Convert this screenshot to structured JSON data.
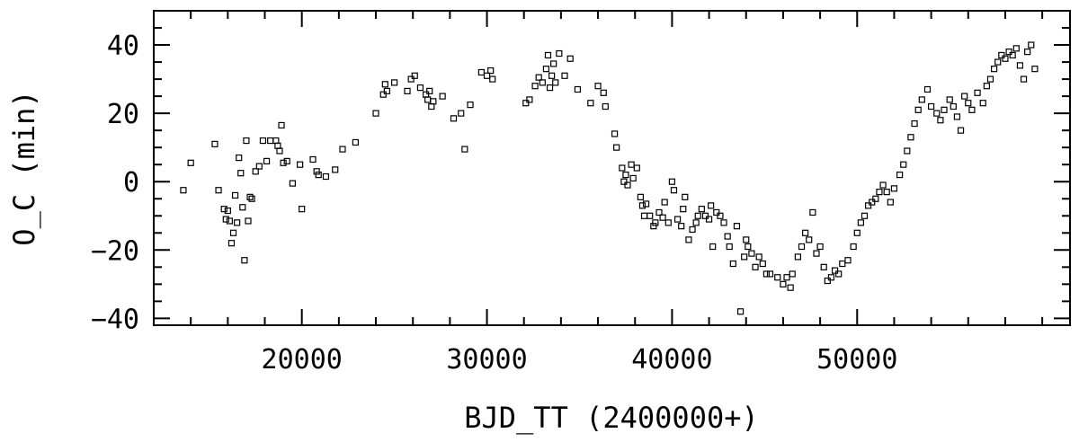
{
  "chart_data": {
    "type": "scatter",
    "xlabel": "BJD_TT (2400000+)",
    "ylabel": "O_C (min)",
    "xlim": [
      12000,
      61500
    ],
    "ylim": [
      -42,
      50
    ],
    "x_ticks": [
      20000,
      30000,
      40000,
      50000
    ],
    "x_tick_labels": [
      "20000",
      "30000",
      "40000",
      "50000"
    ],
    "y_ticks": [
      -40,
      -20,
      0,
      20,
      40
    ],
    "y_tick_labels": [
      "−40",
      "−20",
      "0",
      "20",
      "40"
    ],
    "x_minor_step": 2000,
    "y_minor_step": 5,
    "marker": "open-square",
    "grid": false,
    "series": [
      {
        "points": [
          [
            13600,
            -2.5
          ],
          [
            14000,
            5.5
          ],
          [
            15300,
            11
          ],
          [
            15500,
            -2.5
          ],
          [
            15800,
            -8
          ],
          [
            15900,
            -11
          ],
          [
            16000,
            -8.5
          ],
          [
            16100,
            -11.5
          ],
          [
            16200,
            -18
          ],
          [
            16300,
            -15
          ],
          [
            16400,
            -4
          ],
          [
            16500,
            -12
          ],
          [
            16600,
            7
          ],
          [
            16700,
            2.5
          ],
          [
            16800,
            -7.5
          ],
          [
            16900,
            -23
          ],
          [
            17000,
            12
          ],
          [
            17100,
            -11.5
          ],
          [
            17200,
            -4.5
          ],
          [
            17300,
            -5
          ],
          [
            17500,
            3
          ],
          [
            17700,
            4.5
          ],
          [
            17900,
            12
          ],
          [
            18100,
            6
          ],
          [
            18300,
            12
          ],
          [
            18600,
            12
          ],
          [
            18700,
            10.5
          ],
          [
            18800,
            9
          ],
          [
            18900,
            16.5
          ],
          [
            19000,
            5.5
          ],
          [
            19200,
            6
          ],
          [
            19500,
            -0.5
          ],
          [
            19900,
            5
          ],
          [
            20000,
            -8
          ],
          [
            20600,
            6.5
          ],
          [
            20800,
            3
          ],
          [
            20900,
            2
          ],
          [
            21300,
            1.5
          ],
          [
            21800,
            3.5
          ],
          [
            22200,
            9.5
          ],
          [
            22900,
            11.5
          ],
          [
            24000,
            20
          ],
          [
            24400,
            25.5
          ],
          [
            24500,
            28.5
          ],
          [
            24600,
            26.5
          ],
          [
            25000,
            29
          ],
          [
            25700,
            26.5
          ],
          [
            25900,
            30
          ],
          [
            26100,
            31
          ],
          [
            26400,
            27.5
          ],
          [
            26700,
            25.5
          ],
          [
            26800,
            24
          ],
          [
            26900,
            26.5
          ],
          [
            27000,
            22
          ],
          [
            27100,
            23.5
          ],
          [
            27600,
            25
          ],
          [
            28200,
            18.5
          ],
          [
            28600,
            20
          ],
          [
            28800,
            9.5
          ],
          [
            29100,
            22.5
          ],
          [
            29700,
            32
          ],
          [
            30000,
            31
          ],
          [
            30200,
            32.5
          ],
          [
            30300,
            30
          ],
          [
            32100,
            23
          ],
          [
            32300,
            24
          ],
          [
            32600,
            28
          ],
          [
            32800,
            30.5
          ],
          [
            33000,
            29
          ],
          [
            33200,
            33
          ],
          [
            33300,
            37
          ],
          [
            33400,
            27.5
          ],
          [
            33500,
            31
          ],
          [
            33600,
            34.5
          ],
          [
            33700,
            29
          ],
          [
            33900,
            37.5
          ],
          [
            34200,
            31
          ],
          [
            34500,
            36
          ],
          [
            34900,
            27
          ],
          [
            35600,
            23
          ],
          [
            36000,
            28
          ],
          [
            36300,
            26
          ],
          [
            36400,
            22
          ],
          [
            36900,
            14
          ],
          [
            37000,
            10
          ],
          [
            37300,
            4
          ],
          [
            37400,
            0
          ],
          [
            37500,
            2
          ],
          [
            37600,
            -1
          ],
          [
            37800,
            5
          ],
          [
            37900,
            1
          ],
          [
            38100,
            4
          ],
          [
            38300,
            -4.5
          ],
          [
            38400,
            -7
          ],
          [
            38500,
            -10
          ],
          [
            38600,
            -6.5
          ],
          [
            38800,
            -10
          ],
          [
            39000,
            -13
          ],
          [
            39100,
            -12
          ],
          [
            39300,
            -9
          ],
          [
            39500,
            -10.5
          ],
          [
            39600,
            -6
          ],
          [
            39800,
            -12
          ],
          [
            40000,
            0
          ],
          [
            40100,
            -2.5
          ],
          [
            40300,
            -11
          ],
          [
            40500,
            -13
          ],
          [
            40600,
            -8
          ],
          [
            40700,
            -4.5
          ],
          [
            40900,
            -17
          ],
          [
            41100,
            -14
          ],
          [
            41300,
            -12
          ],
          [
            41400,
            -10
          ],
          [
            41600,
            -8
          ],
          [
            41800,
            -10
          ],
          [
            42000,
            -11
          ],
          [
            42100,
            -7
          ],
          [
            42200,
            -19
          ],
          [
            42400,
            -9
          ],
          [
            42600,
            -10
          ],
          [
            42800,
            -12
          ],
          [
            43000,
            -16
          ],
          [
            43100,
            -19
          ],
          [
            43300,
            -24
          ],
          [
            43500,
            -13
          ],
          [
            43700,
            -38
          ],
          [
            43900,
            -22
          ],
          [
            44000,
            -17
          ],
          [
            44100,
            -19
          ],
          [
            44300,
            -21
          ],
          [
            44500,
            -25
          ],
          [
            44700,
            -22
          ],
          [
            44900,
            -24
          ],
          [
            45100,
            -27
          ],
          [
            45300,
            -27
          ],
          [
            45700,
            -28
          ],
          [
            46000,
            -30
          ],
          [
            46200,
            -28
          ],
          [
            46400,
            -31
          ],
          [
            46500,
            -27
          ],
          [
            46800,
            -22
          ],
          [
            47000,
            -19
          ],
          [
            47200,
            -15
          ],
          [
            47400,
            -17
          ],
          [
            47600,
            -9
          ],
          [
            47800,
            -21
          ],
          [
            48000,
            -19
          ],
          [
            48200,
            -25
          ],
          [
            48400,
            -29
          ],
          [
            48600,
            -28
          ],
          [
            48800,
            -26
          ],
          [
            49000,
            -27
          ],
          [
            49200,
            -24
          ],
          [
            49500,
            -23
          ],
          [
            49800,
            -19
          ],
          [
            50000,
            -15
          ],
          [
            50200,
            -12
          ],
          [
            50400,
            -10
          ],
          [
            50600,
            -7
          ],
          [
            50800,
            -6
          ],
          [
            51000,
            -5
          ],
          [
            51200,
            -3
          ],
          [
            51400,
            -1
          ],
          [
            51600,
            -3
          ],
          [
            51800,
            -6
          ],
          [
            52000,
            -2
          ],
          [
            52300,
            2
          ],
          [
            52500,
            5
          ],
          [
            52700,
            9
          ],
          [
            52900,
            13
          ],
          [
            53100,
            17
          ],
          [
            53300,
            21
          ],
          [
            53500,
            24
          ],
          [
            53800,
            27
          ],
          [
            54000,
            22
          ],
          [
            54300,
            20
          ],
          [
            54500,
            18
          ],
          [
            54700,
            21
          ],
          [
            55000,
            24
          ],
          [
            55200,
            22
          ],
          [
            55400,
            19
          ],
          [
            55600,
            15
          ],
          [
            55800,
            25
          ],
          [
            56000,
            23
          ],
          [
            56200,
            21
          ],
          [
            56500,
            26
          ],
          [
            56800,
            23
          ],
          [
            57000,
            28
          ],
          [
            57200,
            30
          ],
          [
            57400,
            33
          ],
          [
            57600,
            35
          ],
          [
            57800,
            37
          ],
          [
            58000,
            36
          ],
          [
            58200,
            38
          ],
          [
            58400,
            37
          ],
          [
            58600,
            39
          ],
          [
            58800,
            34
          ],
          [
            59000,
            30
          ],
          [
            59200,
            38
          ],
          [
            59400,
            40
          ],
          [
            59600,
            33
          ]
        ]
      }
    ]
  }
}
